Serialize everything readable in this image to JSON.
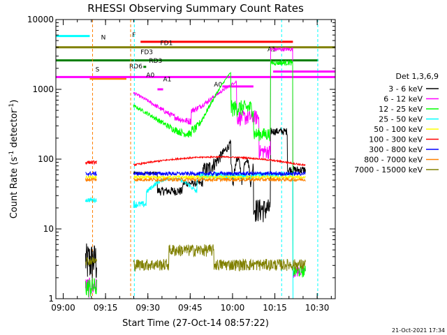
{
  "chart_data": {
    "type": "line",
    "title": "RHESSI Observing Summary Count Rates",
    "xlabel": "Start Time (27-Oct-14 08:57:22)",
    "ylabel": "Count Rate (s^-1 detector^-1)",
    "ylabel_base": "Count Rate (s",
    "ylabel_sup": "-1",
    "ylabel_tail": " detector",
    "ylabel_sup2": "-1",
    "ylabel_end": ")",
    "x_range_min": [
      0,
      76
    ],
    "y_range": [
      1,
      10000
    ],
    "yscale": "log",
    "x_ticks": [
      {
        "label": "09:00",
        "min": 2.6
      },
      {
        "label": "09:15",
        "min": 17.6
      },
      {
        "label": "09:30",
        "min": 32.6
      },
      {
        "label": "09:45",
        "min": 47.6
      },
      {
        "label": "10:00",
        "min": 62.6
      },
      {
        "label": "10:15",
        "min": 77.6
      },
      {
        "label": "10:30",
        "min": 92.6
      }
    ],
    "y_ticks": [
      {
        "label": "1",
        "value": 1
      },
      {
        "label": "10",
        "value": 10
      },
      {
        "label": "100",
        "value": 100
      },
      {
        "label": "1000",
        "value": 1000
      },
      {
        "label": "10000",
        "value": 10000
      }
    ],
    "legend_title": "Det 1,3,6,9",
    "legend_position": "right",
    "series": [
      {
        "name": "3 - 6 keV",
        "color": "#000000"
      },
      {
        "name": "6 - 12 keV",
        "color": "#ff00ff"
      },
      {
        "name": "12 - 25 keV",
        "color": "#00ff00"
      },
      {
        "name": "25 - 50 keV",
        "color": "#00ffff"
      },
      {
        "name": "50 - 100 keV",
        "color": "#ffff00"
      },
      {
        "name": "100 - 300 keV",
        "color": "#ff0000"
      },
      {
        "name": "300 - 800 keV",
        "color": "#0000ff"
      },
      {
        "name": "800 - 7000 keV",
        "color": "#ff8000"
      },
      {
        "name": "7000 - 15000 keV",
        "color": "#808000"
      }
    ],
    "state_bars": [
      {
        "label": "S",
        "color": "#ff8000"
      },
      {
        "label": "N",
        "color": "#00ffff"
      },
      {
        "label": "F",
        "color": "#ff0000"
      },
      {
        "label": "FD1",
        "color": "#808000"
      },
      {
        "label": "FD3",
        "color": "#808000"
      },
      {
        "label": "RD3",
        "color": "#008000"
      },
      {
        "label": "RD6",
        "color": "#008000"
      },
      {
        "label": "A0",
        "color": "#ff00ff"
      },
      {
        "label": "A1",
        "color": "#ff00ff"
      },
      {
        "label": "A0",
        "color": "#ff00ff"
      },
      {
        "label": "A1",
        "color": "#ff00ff"
      }
    ],
    "footer_date": "21-Oct-2021 17:34"
  }
}
